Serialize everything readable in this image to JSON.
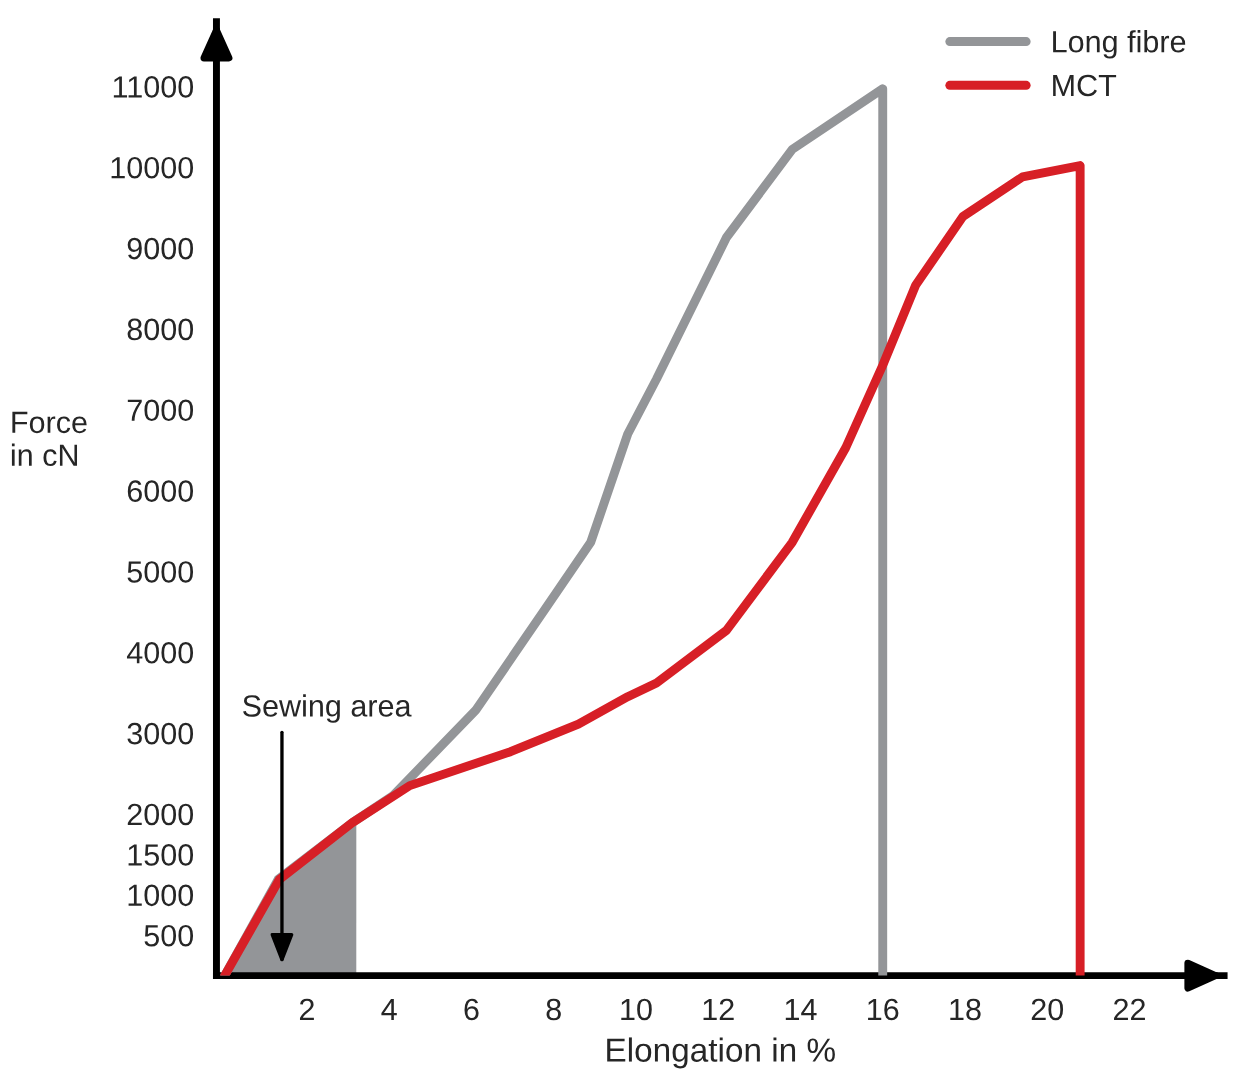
{
  "chart_data": {
    "type": "line",
    "xlabel": "Elongation in %",
    "ylabel": "Force\nin cN",
    "xlim": [
      -0.2,
      24.3
    ],
    "xticks": [
      2,
      4,
      6,
      8,
      10,
      12,
      14,
      16,
      18,
      20,
      22
    ],
    "ylim": [
      0,
      11800
    ],
    "yticks": [
      500,
      1000,
      1500,
      2000,
      3000,
      4000,
      5000,
      6000,
      7000,
      8000,
      9000,
      10000,
      11000
    ],
    "grid": false,
    "legend": "top right",
    "marker": "none",
    "line_style": "solid",
    "series": [
      {
        "type": "area",
        "color": "#939598",
        "x": [
          0,
          1.3,
          3.1,
          3.2
        ],
        "values": [
          0,
          1190,
          1890,
          1910
        ]
      },
      {
        "name": "Long fibre",
        "color": "#939598",
        "x": [
          0,
          1.3,
          3.1,
          4.1,
          6.1,
          7.8,
          8.9,
          9.8,
          10.5,
          12.2,
          13.8,
          16.0,
          16.0
        ],
        "values": [
          0,
          1190,
          1890,
          2230,
          3280,
          4540,
          5360,
          6700,
          7380,
          9130,
          10220,
          10970,
          0
        ]
      },
      {
        "name": "MCT",
        "color": "#d71f26",
        "x": [
          0,
          1.33,
          3.1,
          4.5,
          6.95,
          8.6,
          9.8,
          10.5,
          12.2,
          13.8,
          15.1,
          16.0,
          16.8,
          17.95,
          19.4,
          20.8,
          20.8
        ],
        "values": [
          0,
          1190,
          1890,
          2350,
          2770,
          3110,
          3450,
          3620,
          4270,
          5360,
          6530,
          7550,
          8540,
          9390,
          9880,
          10020,
          0
        ]
      }
    ],
    "annotations": [
      "Sewing area"
    ]
  }
}
